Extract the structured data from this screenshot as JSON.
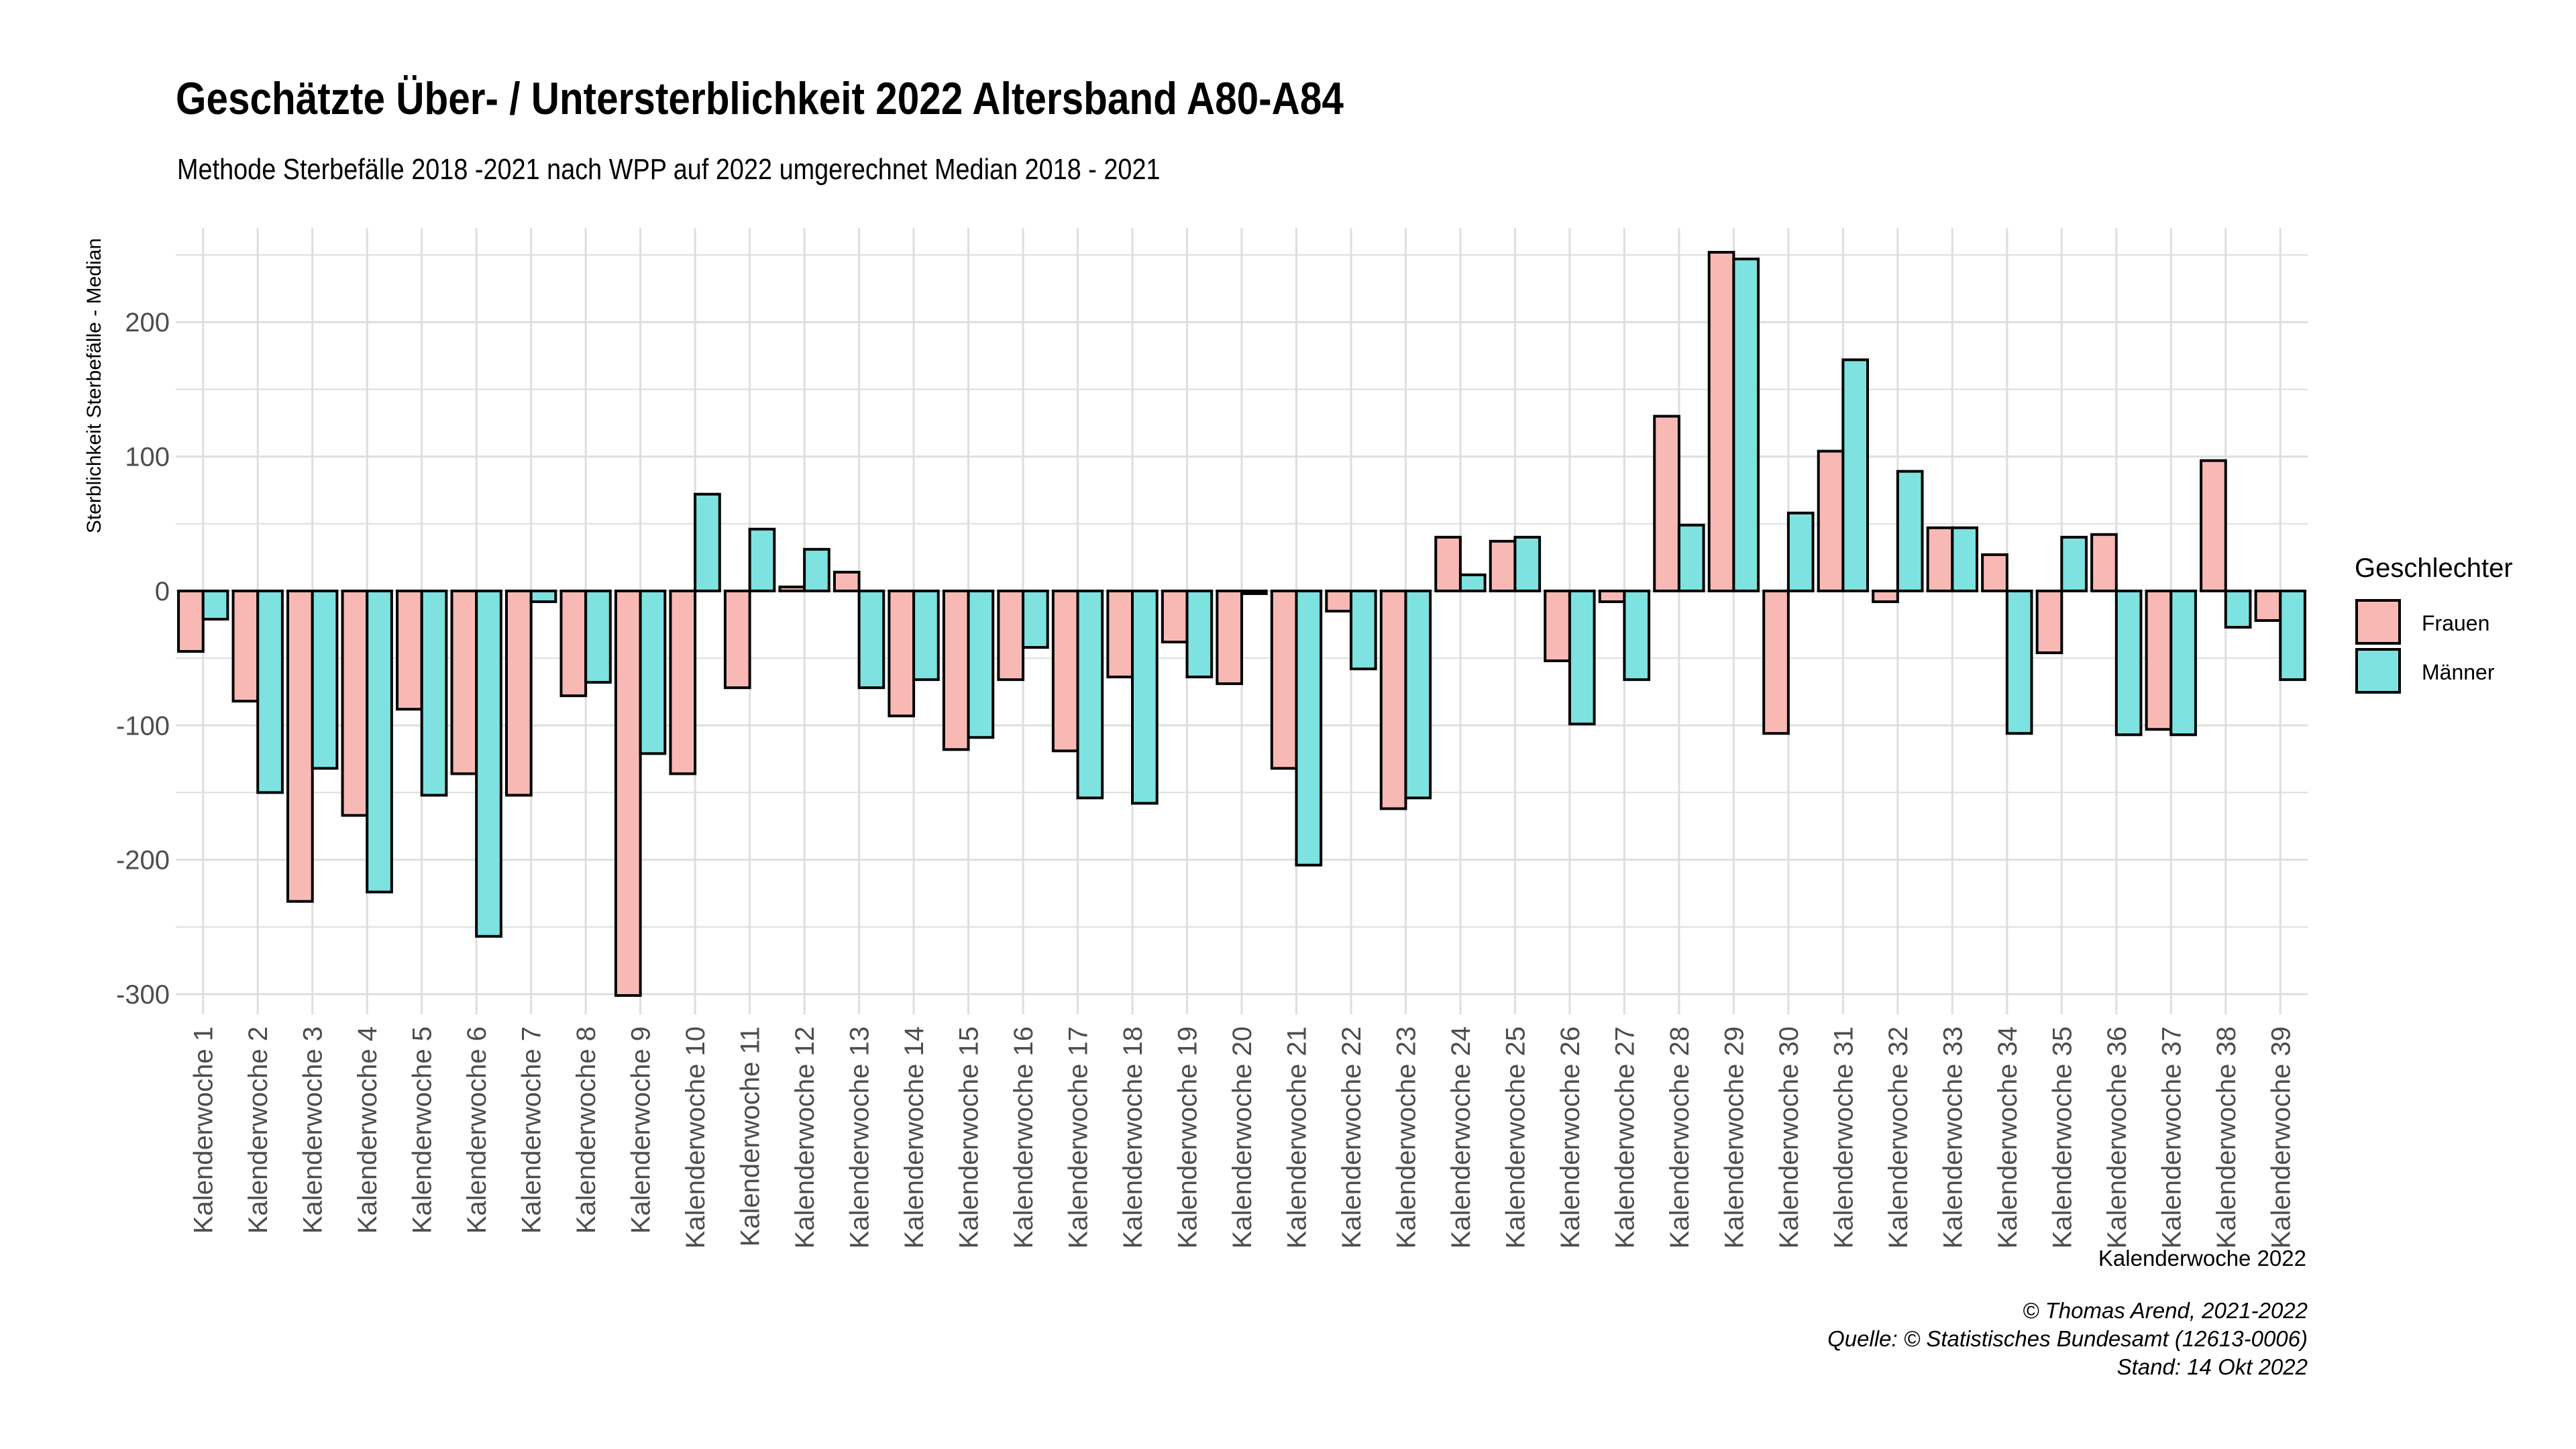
{
  "title": "Geschätzte Über- / Untersterblichkeit 2022 Altersband A80-A84",
  "subtitle": "Methode Sterbefälle 2018 -2021 nach WPP auf 2022 umgerechnet Median 2018 - 2021",
  "caption": {
    "line1": "© Thomas Arend, 2021-2022",
    "line2": "Quelle: © Statistisches Bundesamt (12613-0006)",
    "line3": "Stand: 14 Okt 2022"
  },
  "colors": {
    "Frauen": "#F8B9B4",
    "Männer": "#7DE2E0",
    "grid": "#DEDEDE"
  },
  "chart_data": {
    "type": "bar",
    "title": "Geschätzte Über- / Untersterblichkeit 2022 Altersband A80-A84",
    "subtitle": "Methode Sterbefälle 2018 -2021 nach WPP auf 2022 umgerechnet Median 2018 - 2021",
    "xlabel": "Kalenderwoche 2022",
    "ylabel": "Sterblichkeit Sterbefälle - Median",
    "ylim": [
      -315,
      270
    ],
    "yticks": [
      -300,
      -200,
      -100,
      0,
      100,
      200
    ],
    "grid": true,
    "legend": {
      "title": "Geschlechter",
      "position": "right"
    },
    "categories": [
      "Kalenderwoche 1",
      "Kalenderwoche 2",
      "Kalenderwoche 3",
      "Kalenderwoche 4",
      "Kalenderwoche 5",
      "Kalenderwoche 6",
      "Kalenderwoche 7",
      "Kalenderwoche 8",
      "Kalenderwoche 9",
      "Kalenderwoche 10",
      "Kalenderwoche 11",
      "Kalenderwoche 12",
      "Kalenderwoche 13",
      "Kalenderwoche 14",
      "Kalenderwoche 15",
      "Kalenderwoche 16",
      "Kalenderwoche 17",
      "Kalenderwoche 18",
      "Kalenderwoche 19",
      "Kalenderwoche 20",
      "Kalenderwoche 21",
      "Kalenderwoche 22",
      "Kalenderwoche 23",
      "Kalenderwoche 24",
      "Kalenderwoche 25",
      "Kalenderwoche 26",
      "Kalenderwoche 27",
      "Kalenderwoche 28",
      "Kalenderwoche 29",
      "Kalenderwoche 30",
      "Kalenderwoche 31",
      "Kalenderwoche 32",
      "Kalenderwoche 33",
      "Kalenderwoche 34",
      "Kalenderwoche 35",
      "Kalenderwoche 36",
      "Kalenderwoche 37",
      "Kalenderwoche 38",
      "Kalenderwoche 39"
    ],
    "series": [
      {
        "name": "Frauen",
        "values": [
          -45,
          -82,
          -231,
          -167,
          -88,
          -136,
          -152,
          -78,
          -301,
          -136,
          -72,
          3,
          14,
          -93,
          -118,
          -66,
          -119,
          -64,
          -38,
          -69,
          -132,
          -15,
          -162,
          40,
          37,
          -52,
          -8,
          130,
          252,
          -106,
          104,
          -8,
          47,
          27,
          -46,
          42,
          -103,
          97,
          -22
        ]
      },
      {
        "name": "Männer",
        "values": [
          -21,
          -150,
          -132,
          -224,
          -152,
          -257,
          -8,
          -68,
          -121,
          72,
          46,
          31,
          -72,
          -66,
          -109,
          -42,
          -154,
          -158,
          -64,
          -2,
          -204,
          -58,
          -154,
          12,
          40,
          -99,
          -66,
          49,
          247,
          58,
          172,
          89,
          47,
          -106,
          40,
          -107,
          -107,
          -27,
          -66
        ]
      }
    ]
  }
}
